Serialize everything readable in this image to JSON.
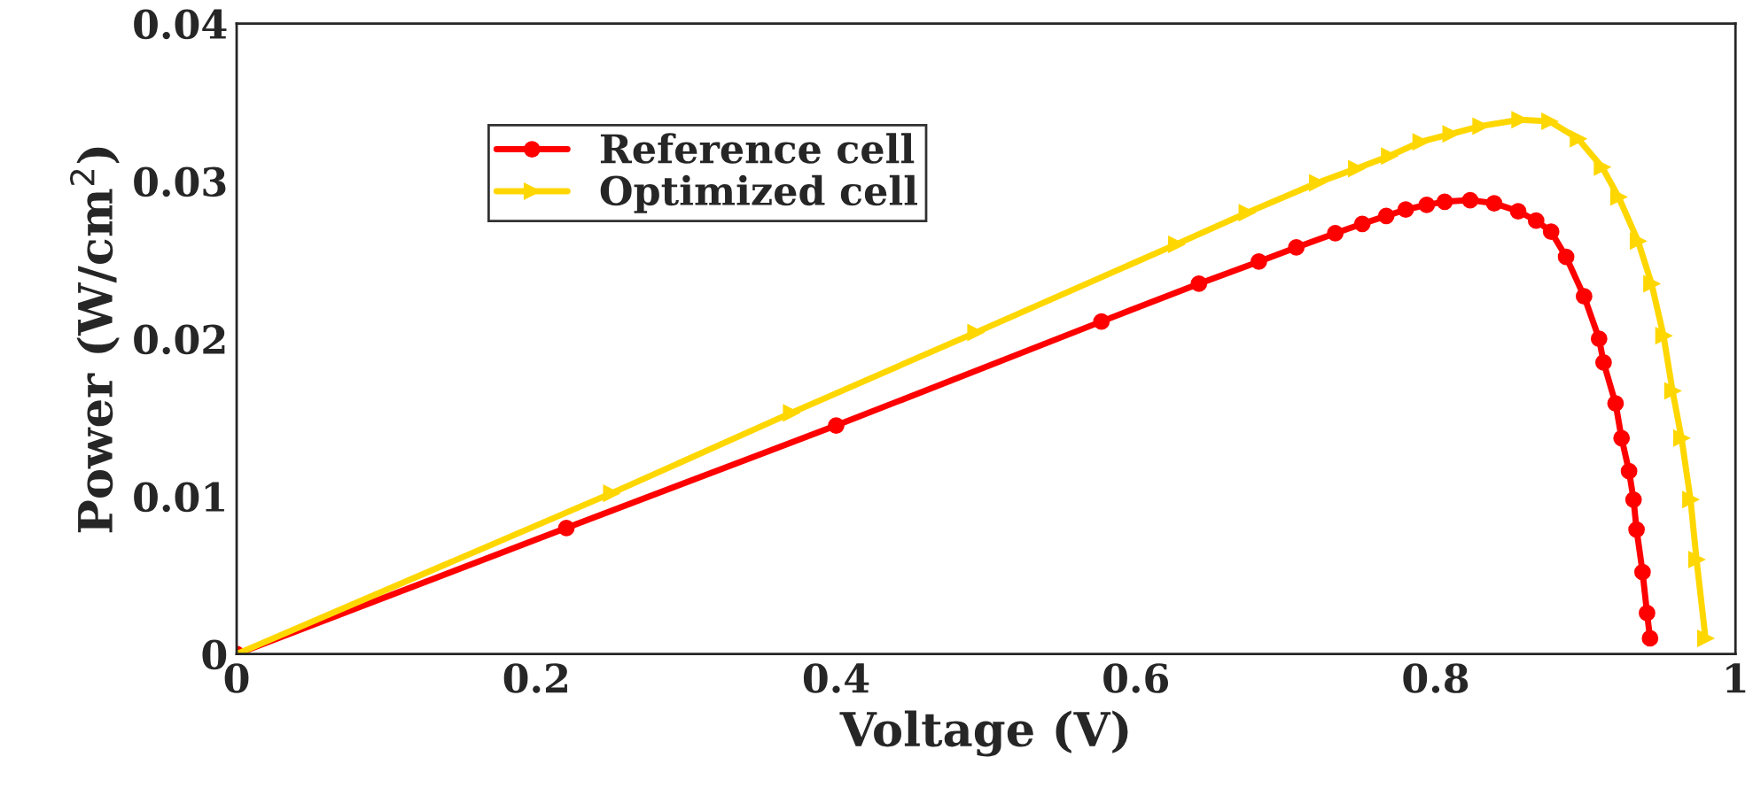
{
  "chart_data": {
    "type": "line",
    "xlabel": "Voltage (V)",
    "ylabel": "Power (W/cm$^{2}$)",
    "xlim": [
      0,
      1
    ],
    "ylim": [
      0,
      0.04
    ],
    "xticks": [
      0,
      0.2,
      0.4,
      0.6,
      0.8,
      1
    ],
    "yticks": [
      0,
      0.01,
      0.02,
      0.03,
      0.04
    ],
    "grid": false,
    "legend": "top left",
    "line_style": "solid",
    "series": [
      {
        "name": "Reference cell",
        "color": "#ff0000",
        "marker": "circle",
        "x": [
          0,
          0.22,
          0.4,
          0.577,
          0.642,
          0.682,
          0.707,
          0.733,
          0.751,
          0.767,
          0.78,
          0.794,
          0.806,
          0.823,
          0.839,
          0.855,
          0.867,
          0.877,
          0.887,
          0.899,
          0.909,
          0.912,
          0.92,
          0.924,
          0.929,
          0.932,
          0.934,
          0.938,
          0.941,
          0.943
        ],
        "values": [
          0,
          0.008,
          0.0145,
          0.0211,
          0.0235,
          0.0249,
          0.0258,
          0.0267,
          0.0273,
          0.0278,
          0.0282,
          0.0285,
          0.0287,
          0.0288,
          0.0286,
          0.0281,
          0.0275,
          0.0268,
          0.0252,
          0.0227,
          0.02,
          0.0185,
          0.0159,
          0.0137,
          0.0116,
          0.0098,
          0.0079,
          0.0052,
          0.0026,
          0.001
        ]
      },
      {
        "name": "Optimized cell",
        "color": "#ffd700",
        "marker": "triangle",
        "x": [
          0,
          0.25,
          0.37,
          0.493,
          0.627,
          0.674,
          0.721,
          0.747,
          0.769,
          0.79,
          0.81,
          0.83,
          0.856,
          0.876,
          0.895,
          0.911,
          0.922,
          0.935,
          0.944,
          0.952,
          0.958,
          0.964,
          0.97,
          0.974,
          0.98
        ],
        "values": [
          0,
          0.0102,
          0.0153,
          0.0204,
          0.026,
          0.028,
          0.0299,
          0.0308,
          0.0316,
          0.0325,
          0.033,
          0.0335,
          0.0339,
          0.0338,
          0.0327,
          0.0309,
          0.029,
          0.0262,
          0.0235,
          0.0202,
          0.0167,
          0.0137,
          0.0098,
          0.006,
          0.001
        ]
      }
    ]
  }
}
